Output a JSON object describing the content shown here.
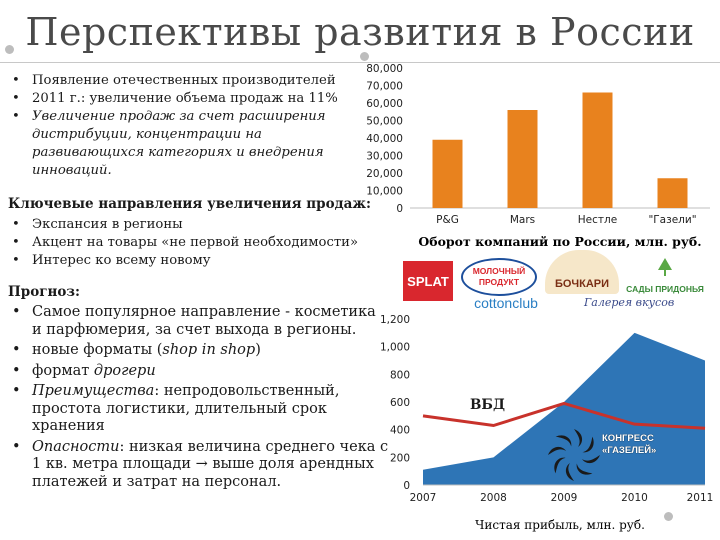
{
  "title": "Перспективы развития в России",
  "intro_bullets": [
    "Появление отечественных производителей",
    "2011 г.: увеличение объема продаж на 11%",
    "Увеличение продаж за счет расширения дистрибуции, концентрации на развивающихся категориях и внедрения инноваций."
  ],
  "key_directions": {
    "heading": "Ключевые направления увеличения продаж:",
    "items": [
      "Экспансия в регионы",
      "Акцент на товары «не первой необходимости»",
      "Интерес ко всему новому"
    ]
  },
  "forecast": {
    "heading": "Прогноз:",
    "items": [
      {
        "pre": "Самое популярное направление - косметика и парфюмерия, за счет выхода в регионы.",
        "ital": "",
        "post": ""
      },
      {
        "pre": "новые форматы (",
        "ital": "shop in shop",
        "post": ")"
      },
      {
        "pre": "формат ",
        "ital": "дрогери",
        "post": ""
      },
      {
        "pre": "",
        "ital": "Преимущества",
        "post": ": непродовольственный, простота логистики, длительный срок хранения"
      },
      {
        "pre": "",
        "ital": "Опасности",
        "post": ": низкая величина среднего чека с 1 кв. метра площади → выше доля арендных платежей и затрат на персонал."
      }
    ]
  },
  "logos": {
    "splat": "SPLAT",
    "molochny": "МОЛОЧНЫЙ ПРОДУКТ",
    "bochkari": "БОЧКАРИ",
    "sady": "САДЫ ПРИДОНЬЯ",
    "cottonclub": "cottonclub",
    "signature": "Галерея вкусов"
  },
  "congress": {
    "line1": "КОНГРЕСС",
    "line2": "«ГАЗЕЛЕЙ»"
  },
  "chart_data": [
    {
      "type": "bar",
      "categories": [
        "P&G",
        "Mars",
        "Нестле",
        "\"Газели\""
      ],
      "values": [
        39000,
        56000,
        66000,
        17000
      ],
      "xlabel": "Оборот компаний по России, млн. руб.",
      "ylabel": "",
      "ylim": [
        0,
        80000
      ],
      "yticks": [
        "0",
        "10,000",
        "20,000",
        "30,000",
        "40,000",
        "50,000",
        "60,000",
        "70,000",
        "80,000"
      ],
      "colors": {
        "bar": "#e8821e"
      }
    },
    {
      "type": "area",
      "x": [
        "2007",
        "2008",
        "2009",
        "2010",
        "2011"
      ],
      "ylim": [
        0,
        1200
      ],
      "yticks": [
        "0",
        "200",
        "400",
        "600",
        "800",
        "1,000",
        "1,200"
      ],
      "xlabel": "Чистая прибыль, млн. руб.",
      "series": [
        {
          "kind": "area",
          "values": [
            110,
            200,
            600,
            1100,
            900
          ],
          "color": "#2e75b6"
        },
        {
          "name": "ВБД",
          "kind": "line",
          "values": [
            500,
            430,
            590,
            440,
            410
          ],
          "color": "#c8322b"
        }
      ]
    }
  ]
}
